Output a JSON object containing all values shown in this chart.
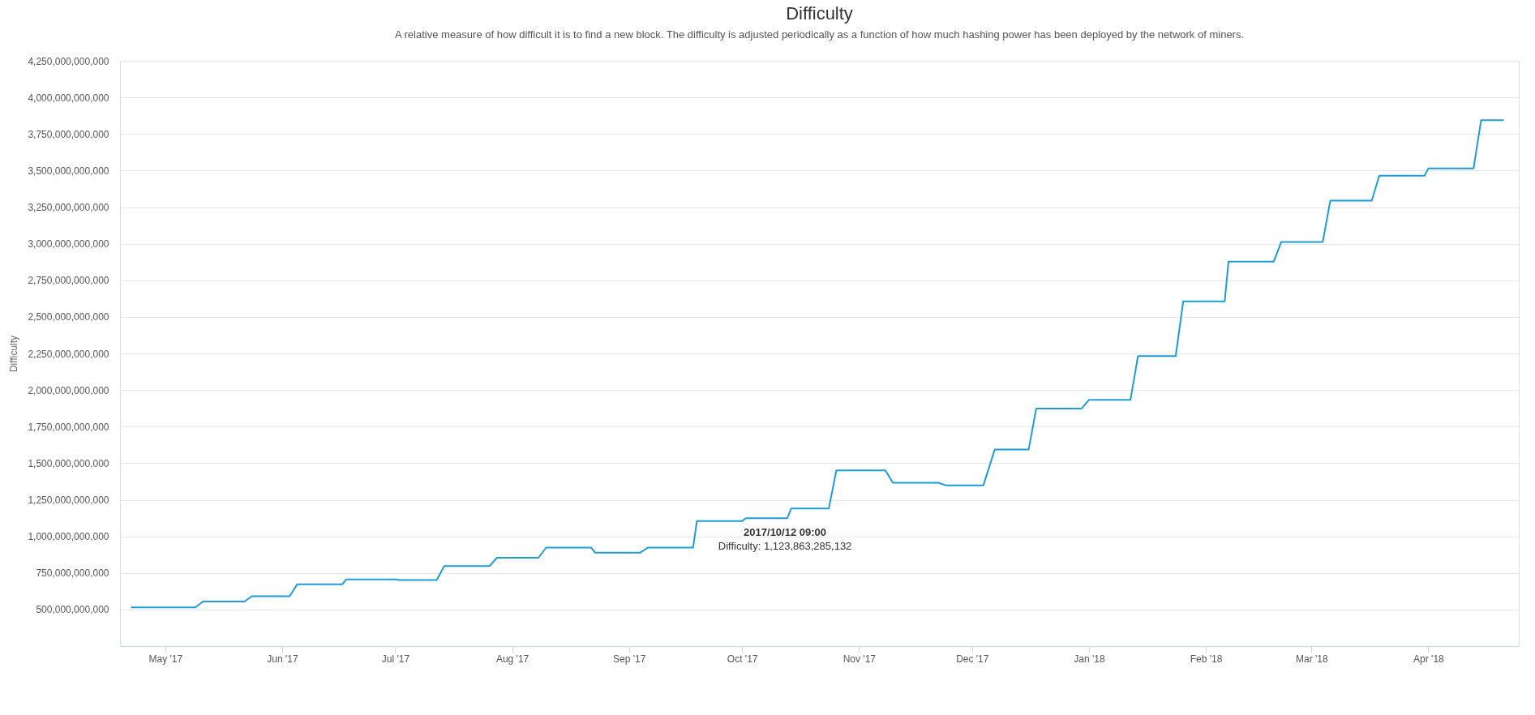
{
  "chart_data": {
    "type": "line",
    "title": "Difficulty",
    "subtitle": "A relative measure of how difficult it is to find a new block. The difficulty is adjusted periodically as a function of how much hashing power has been deployed by the network of miners.",
    "ylabel": "Difficulty",
    "x": [
      "2017-04-22",
      "2017-05-09",
      "2017-05-11",
      "2017-05-22",
      "2017-05-24",
      "2017-06-03",
      "2017-06-05",
      "2017-06-17",
      "2017-06-18",
      "2017-07-01",
      "2017-07-02",
      "2017-07-12",
      "2017-07-14",
      "2017-07-26",
      "2017-07-28",
      "2017-08-08",
      "2017-08-10",
      "2017-08-22",
      "2017-08-23",
      "2017-09-04",
      "2017-09-06",
      "2017-09-18",
      "2017-09-19",
      "2017-10-01",
      "2017-10-02",
      "2017-10-13",
      "2017-10-14",
      "2017-10-24",
      "2017-10-26",
      "2017-11-08",
      "2017-11-10",
      "2017-11-22",
      "2017-11-24",
      "2017-12-04",
      "2017-12-07",
      "2017-12-16",
      "2017-12-18",
      "2017-12-30",
      "2018-01-01",
      "2018-01-12",
      "2018-01-14",
      "2018-01-24",
      "2018-01-26",
      "2018-02-06",
      "2018-02-07",
      "2018-02-19",
      "2018-02-21",
      "2018-03-04",
      "2018-03-06",
      "2018-03-17",
      "2018-03-19",
      "2018-03-31",
      "2018-04-01",
      "2018-04-13",
      "2018-04-15",
      "2018-04-21"
    ],
    "series": [
      {
        "color": "#1f9bd6",
        "values": [
          515000000000,
          515000000000,
          555000000000,
          555000000000,
          591000000000,
          591000000000,
          673000000000,
          673000000000,
          706000000000,
          706000000000,
          701000000000,
          701000000000,
          797000000000,
          797000000000,
          854000000000,
          854000000000,
          923000000000,
          923000000000,
          889000000000,
          889000000000,
          923000000000,
          923000000000,
          1104000000000,
          1104000000000,
          1124000000000,
          1124000000000,
          1190000000000,
          1190000000000,
          1451000000000,
          1451000000000,
          1366000000000,
          1366000000000,
          1349000000000,
          1349000000000,
          1593000000000,
          1593000000000,
          1873000000000,
          1873000000000,
          1933000000000,
          1933000000000,
          2232000000000,
          2232000000000,
          2606000000000,
          2606000000000,
          2878000000000,
          2878000000000,
          3012000000000,
          3012000000000,
          3294000000000,
          3294000000000,
          3465000000000,
          3465000000000,
          3514000000000,
          3514000000000,
          3844000000000,
          3844000000000
        ]
      }
    ],
    "xlim": [
      "2017-04-19",
      "2018-04-25"
    ],
    "xticks": [
      {
        "value": "2017-05-01",
        "label": "May '17"
      },
      {
        "value": "2017-06-01",
        "label": "Jun '17"
      },
      {
        "value": "2017-07-01",
        "label": "Jul '17"
      },
      {
        "value": "2017-08-01",
        "label": "Aug '17"
      },
      {
        "value": "2017-09-01",
        "label": "Sep '17"
      },
      {
        "value": "2017-10-01",
        "label": "Oct '17"
      },
      {
        "value": "2017-11-01",
        "label": "Nov '17"
      },
      {
        "value": "2017-12-01",
        "label": "Dec '17"
      },
      {
        "value": "2018-01-01",
        "label": "Jan '18"
      },
      {
        "value": "2018-02-01",
        "label": "Feb '18"
      },
      {
        "value": "2018-03-01",
        "label": "Mar '18"
      },
      {
        "value": "2018-04-01",
        "label": "Apr '18"
      }
    ],
    "ylim": [
      250000000000,
      4250000000000
    ],
    "yticks": [
      {
        "value": 500000000000,
        "label": "500,000,000,000"
      },
      {
        "value": 750000000000,
        "label": "750,000,000,000"
      },
      {
        "value": 1000000000000,
        "label": "1,000,000,000,000"
      },
      {
        "value": 1250000000000,
        "label": "1,250,000,000,000"
      },
      {
        "value": 1500000000000,
        "label": "1,500,000,000,000"
      },
      {
        "value": 1750000000000,
        "label": "1,750,000,000,000"
      },
      {
        "value": 2000000000000,
        "label": "2,000,000,000,000"
      },
      {
        "value": 2250000000000,
        "label": "2,250,000,000,000"
      },
      {
        "value": 2500000000000,
        "label": "2,500,000,000,000"
      },
      {
        "value": 2750000000000,
        "label": "2,750,000,000,000"
      },
      {
        "value": 3000000000000,
        "label": "3,000,000,000,000"
      },
      {
        "value": 3250000000000,
        "label": "3,250,000,000,000"
      },
      {
        "value": 3500000000000,
        "label": "3,500,000,000,000"
      },
      {
        "value": 3750000000000,
        "label": "3,750,000,000,000"
      },
      {
        "value": 4000000000000,
        "label": "4,000,000,000,000"
      },
      {
        "value": 4250000000000,
        "label": "4,250,000,000,000"
      }
    ],
    "grid": "y",
    "marker": "none",
    "line_style": "solid",
    "annotations": [
      {
        "text": "2017/10/12 09:00\nDifficulty: 1,123,863,285,132",
        "x": "2017-10-12T09:00",
        "y": 1123863285132
      }
    ]
  }
}
